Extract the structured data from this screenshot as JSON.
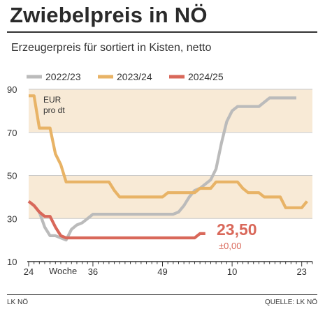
{
  "title": "Zwiebelpreis in NÖ",
  "subtitle": "Erzeugerpreis für sortiert in Kisten, netto",
  "footer": {
    "left": "LK NÖ",
    "right": "QUELLE: LK NÖ"
  },
  "colors": {
    "band": "#f8ead6",
    "grid": "#c8c8c8",
    "axis": "#333333",
    "series": [
      "#bbbbbb",
      "#e8b366",
      "#d9685a"
    ]
  },
  "chart_data": {
    "type": "line",
    "unit_label_line1": "EUR",
    "unit_label_line2": "pro dt",
    "xlabel": "Woche",
    "ylim": [
      10,
      90
    ],
    "yticks": [
      "10",
      "30",
      "50",
      "70",
      "90"
    ],
    "xlim": [
      0,
      53
    ],
    "xticks": [
      {
        "pos": 0,
        "label": "24"
      },
      {
        "pos": 12,
        "label": "36"
      },
      {
        "pos": 25,
        "label": "49"
      },
      {
        "pos": 38,
        "label": "10"
      },
      {
        "pos": 51,
        "label": "23"
      }
    ],
    "legend": [
      "2022/23",
      "2023/24",
      "2024/25"
    ],
    "series": [
      {
        "name": "2022/23",
        "x": [
          0,
          1,
          2,
          3,
          4,
          5,
          6,
          7,
          8,
          9,
          10,
          11,
          12,
          13,
          14,
          15,
          16,
          17,
          18,
          19,
          20,
          21,
          22,
          23,
          24,
          25,
          26,
          27,
          28,
          29,
          30,
          31,
          32,
          33,
          34,
          35,
          36,
          37,
          38,
          39,
          40,
          41,
          42,
          43,
          44,
          45,
          46,
          47,
          48,
          49,
          50
        ],
        "values": [
          38,
          36,
          33,
          26,
          22,
          22,
          21,
          20,
          25,
          27,
          28,
          30,
          32,
          32,
          32,
          32,
          32,
          32,
          32,
          32,
          32,
          32,
          32,
          32,
          32,
          32,
          32,
          32,
          33,
          36,
          40,
          43,
          44,
          46,
          48,
          53,
          65,
          75,
          80,
          82,
          82,
          82,
          82,
          82,
          84,
          86,
          86,
          86,
          86,
          86,
          86
        ]
      },
      {
        "name": "2023/24",
        "x": [
          0,
          1,
          2,
          3,
          4,
          5,
          6,
          7,
          8,
          9,
          10,
          11,
          12,
          13,
          14,
          15,
          16,
          17,
          18,
          19,
          20,
          21,
          22,
          23,
          24,
          25,
          26,
          27,
          28,
          29,
          30,
          31,
          32,
          33,
          34,
          35,
          36,
          37,
          38,
          39,
          40,
          41,
          42,
          43,
          44,
          45,
          46,
          47,
          48,
          49,
          50,
          51,
          52
        ],
        "values": [
          87,
          87,
          72,
          72,
          72,
          60,
          55,
          47,
          47,
          47,
          47,
          47,
          47,
          47,
          47,
          47,
          43,
          40,
          40,
          40,
          40,
          40,
          40,
          40,
          40,
          40,
          42,
          42,
          42,
          42,
          42,
          42,
          44,
          44,
          44,
          47,
          47,
          47,
          47,
          47,
          44,
          42,
          42,
          42,
          40,
          40,
          40,
          40,
          35,
          35,
          35,
          35,
          38
        ]
      },
      {
        "name": "2024/25",
        "x": [
          0,
          1,
          2,
          3,
          4,
          5,
          6,
          7,
          8,
          9,
          10,
          11,
          12,
          13,
          14,
          15,
          16,
          17,
          18,
          19,
          20,
          21,
          22,
          23,
          24,
          25,
          26,
          27,
          28,
          29,
          30,
          31,
          32,
          33
        ],
        "values": [
          38,
          36,
          33,
          31,
          31,
          26,
          22,
          21,
          21,
          21,
          21,
          21,
          21,
          21,
          21,
          21,
          21,
          21,
          21,
          21,
          21,
          21,
          21,
          21,
          21,
          21,
          21,
          21,
          21,
          21,
          21,
          21,
          23,
          23
        ]
      }
    ],
    "annotation": {
      "value": "23,50",
      "change": "±0,00"
    }
  }
}
